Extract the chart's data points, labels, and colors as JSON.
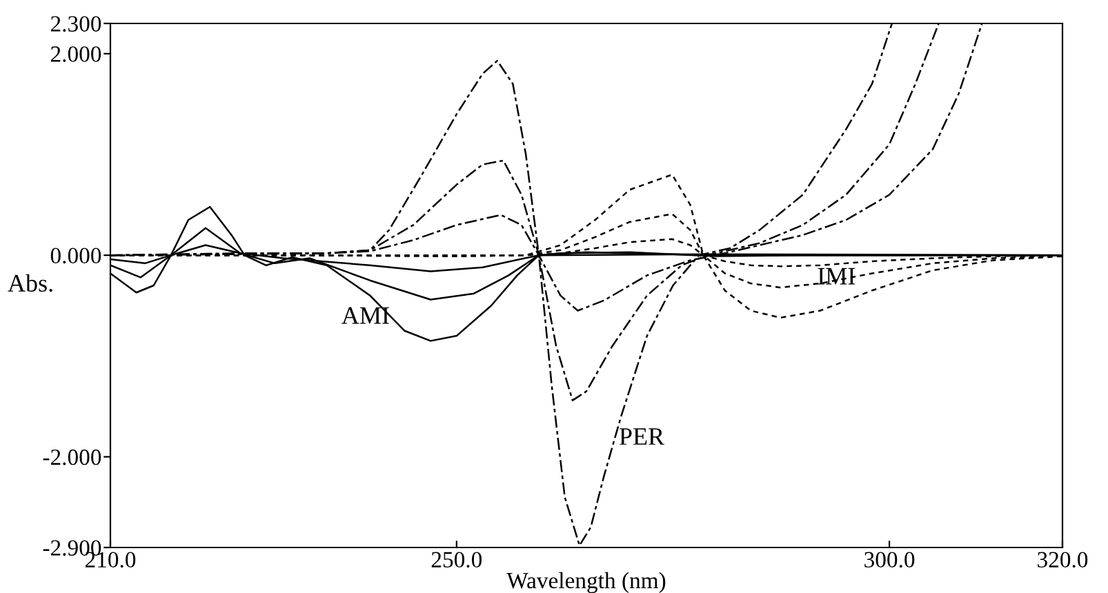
{
  "chart_data": {
    "type": "line",
    "xlabel": "Wavelength (nm)",
    "ylabel": "Abs.",
    "xlim": [
      210,
      320
    ],
    "ylim": [
      -2.9,
      2.3
    ],
    "xticks": [
      {
        "value": 210,
        "label": "210.0"
      },
      {
        "value": 250,
        "label": "250.0"
      },
      {
        "value": 300,
        "label": "300.0"
      },
      {
        "value": 320,
        "label": "320.0"
      }
    ],
    "yticks": [
      {
        "value": -2.9,
        "label": "-2.900"
      },
      {
        "value": -2,
        "label": "-2.000"
      },
      {
        "value": 0,
        "label": "0.000"
      },
      {
        "value": 2,
        "label": "2.000"
      },
      {
        "value": 2.3,
        "label": "2.300"
      }
    ],
    "grid": false,
    "marker": "none",
    "annotations": [
      {
        "text": "AMI",
        "x": 242.5,
        "y": -0.62
      },
      {
        "text": "PER",
        "x": 268.3,
        "y": -1.82
      },
      {
        "text": "IMI",
        "x": 291.2,
        "y": -0.23
      }
    ],
    "series": [
      {
        "color": "#000000",
        "line_style": "solid",
        "x": [
          210,
          213,
          215,
          217,
          219,
          221.5,
          224,
          225.5,
          228,
          231,
          235,
          240,
          244,
          247,
          250,
          254,
          257,
          259.5,
          262,
          270,
          280,
          290,
          320
        ],
        "values": [
          -0.18,
          -0.37,
          -0.3,
          0,
          0.35,
          0.48,
          0.2,
          0,
          -0.1,
          -0.02,
          -0.1,
          -0.4,
          -0.75,
          -0.85,
          -0.8,
          -0.5,
          -0.2,
          0,
          0.02,
          0.03,
          -0.01,
          0,
          0
        ]
      },
      {
        "color": "#000000",
        "line_style": "solid",
        "x": [
          210,
          213.5,
          217,
          221,
          225,
          229,
          233,
          240,
          247,
          252,
          256,
          259.5,
          265,
          280,
          320
        ],
        "values": [
          -0.1,
          -0.22,
          0,
          0.27,
          0.02,
          -0.08,
          -0.03,
          -0.25,
          -0.44,
          -0.38,
          -0.2,
          0,
          0.03,
          0,
          0
        ]
      },
      {
        "color": "#000000",
        "line_style": "solid",
        "x": [
          210,
          214,
          217,
          221,
          225,
          230,
          240,
          247,
          253,
          259.5,
          280,
          320
        ],
        "values": [
          -0.04,
          -0.08,
          0,
          0.1,
          0.02,
          -0.03,
          -0.1,
          -0.16,
          -0.12,
          0,
          0.01,
          0
        ]
      },
      {
        "color": "#000000",
        "line_style": "dashed",
        "x": [
          210,
          225,
          235,
          240,
          242.2,
          246,
          250,
          253,
          254.7,
          256.5,
          258,
          259.5,
          261,
          262.5,
          264.2,
          265.5,
          267,
          269,
          272,
          275,
          278,
          281.6,
          285,
          290,
          295,
          298,
          300.3
        ],
        "values": [
          0,
          0.02,
          0.02,
          0.05,
          0.25,
          0.8,
          1.4,
          1.8,
          1.93,
          1.7,
          1.0,
          0,
          -1.3,
          -2.4,
          -2.88,
          -2.7,
          -2.2,
          -1.6,
          -0.8,
          -0.3,
          0,
          0.07,
          0.25,
          0.6,
          1.25,
          1.7,
          2.3
        ]
      },
      {
        "color": "#000000",
        "line_style": "dashed",
        "x": [
          210,
          235,
          240,
          245,
          250,
          253,
          255.4,
          257.5,
          259.5,
          261.5,
          263.4,
          265,
          268,
          272,
          276,
          279,
          285,
          290,
          295,
          300,
          303,
          305.7
        ],
        "values": [
          0,
          0.02,
          0.05,
          0.3,
          0.7,
          0.9,
          0.94,
          0.6,
          0,
          -0.9,
          -1.44,
          -1.35,
          -0.9,
          -0.4,
          -0.1,
          0,
          0.12,
          0.3,
          0.6,
          1.1,
          1.7,
          2.3
        ]
      },
      {
        "color": "#000000",
        "line_style": "dashed",
        "x": [
          210,
          235,
          240,
          245,
          250,
          255.1,
          257.5,
          259.5,
          262,
          264,
          267,
          272,
          277,
          280,
          290,
          295,
          300,
          305,
          308,
          310.7
        ],
        "values": [
          0,
          0.02,
          0.04,
          0.15,
          0.3,
          0.4,
          0.3,
          0,
          -0.4,
          -0.55,
          -0.45,
          -0.2,
          -0.05,
          0,
          0.2,
          0.35,
          0.6,
          1.05,
          1.6,
          2.3
        ]
      },
      {
        "color": "#000000",
        "line_style": "dotted",
        "x": [
          210,
          230,
          250,
          258,
          262,
          266,
          270,
          274.9,
          277,
          278.5,
          281,
          284,
          287.4,
          292,
          298,
          305,
          312,
          320
        ],
        "values": [
          0,
          0,
          -0.01,
          0,
          0.1,
          0.35,
          0.65,
          0.8,
          0.5,
          0,
          -0.35,
          -0.55,
          -0.62,
          -0.55,
          -0.35,
          -0.15,
          -0.05,
          -0.01
        ]
      },
      {
        "color": "#000000",
        "line_style": "dotted",
        "x": [
          210,
          230,
          250,
          258,
          262,
          266,
          270,
          274.9,
          277,
          278.5,
          281,
          284,
          287.4,
          292,
          298,
          305,
          312,
          320
        ],
        "values": [
          0,
          0,
          -0.01,
          0,
          0.05,
          0.18,
          0.33,
          0.41,
          0.25,
          0,
          -0.18,
          -0.28,
          -0.32,
          -0.28,
          -0.18,
          -0.08,
          -0.03,
          0
        ]
      },
      {
        "color": "#000000",
        "line_style": "dotted",
        "x": [
          210,
          230,
          250,
          258,
          262,
          266,
          270,
          274.9,
          277,
          278.5,
          281,
          284,
          287.4,
          292,
          298,
          305,
          312,
          320
        ],
        "values": [
          0,
          0,
          0,
          0,
          0.02,
          0.07,
          0.13,
          0.16,
          0.1,
          0,
          -0.06,
          -0.1,
          -0.11,
          -0.1,
          -0.06,
          -0.03,
          -0.01,
          0
        ]
      }
    ]
  }
}
